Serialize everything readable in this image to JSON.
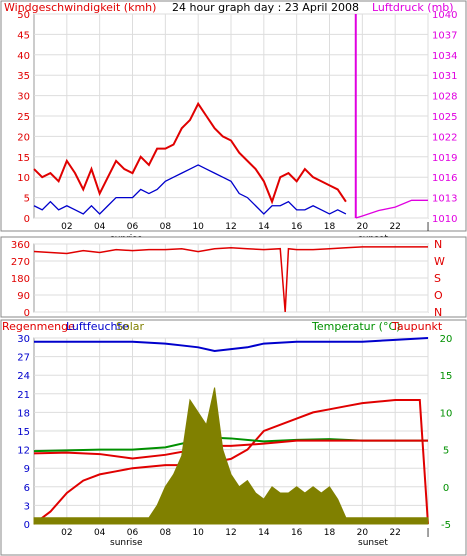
{
  "chart_data": [
    {
      "type": "line",
      "title": "24 hour graph day : 23 April 2008",
      "left_label": "Windgeschwindigkeit (kmh)",
      "right_label": "Luftdruck (mb)",
      "ylim": [
        0,
        50
      ],
      "yticks": [
        "0",
        "5",
        "10",
        "15",
        "20",
        "25",
        "30",
        "35",
        "40",
        "45",
        "50"
      ],
      "y2lim": [
        1010,
        1040
      ],
      "y2ticks": [
        "1010",
        "1013",
        "1016",
        "1019",
        "1022",
        "1025",
        "1028",
        "1031",
        "1034",
        "1037",
        "1040"
      ],
      "xlim": [
        0,
        24
      ],
      "xticks": [
        "02",
        "04",
        "06",
        "08",
        "10",
        "12",
        "14",
        "16",
        "18",
        "20",
        "22",
        "|"
      ],
      "sunrise_label": "sunrise",
      "sunset_label": "sunset",
      "series": [
        {
          "role": "gust",
          "color": "#e00000",
          "x": [
            0,
            0.5,
            1,
            1.5,
            2,
            2.5,
            3,
            3.5,
            4,
            4.5,
            5,
            5.5,
            6,
            6.5,
            7,
            7.5,
            8,
            8.5,
            9,
            9.5,
            10,
            10.5,
            11,
            11.5,
            12,
            12.5,
            13,
            13.5,
            14,
            14.5,
            15,
            15.5,
            16,
            16.5,
            17,
            17.5,
            18,
            18.5,
            19
          ],
          "y": [
            12,
            10,
            11,
            9,
            14,
            11,
            7,
            12,
            6,
            10,
            14,
            12,
            11,
            15,
            13,
            17,
            17,
            18,
            22,
            24,
            28,
            25,
            22,
            20,
            19,
            16,
            14,
            12,
            9,
            4,
            10,
            11,
            9,
            12,
            10,
            9,
            8,
            7,
            4
          ]
        },
        {
          "role": "mean",
          "color": "#0000cc",
          "x": [
            0,
            0.5,
            1,
            1.5,
            2,
            2.5,
            3,
            3.5,
            4,
            4.5,
            5,
            5.5,
            6,
            6.5,
            7,
            7.5,
            8,
            8.5,
            9,
            9.5,
            10,
            10.5,
            11,
            11.5,
            12,
            12.5,
            13,
            13.5,
            14,
            14.5,
            15,
            15.5,
            16,
            16.5,
            17,
            17.5,
            18,
            18.5,
            19
          ],
          "y": [
            3,
            2,
            4,
            2,
            3,
            2,
            1,
            3,
            1,
            3,
            5,
            5,
            5,
            7,
            6,
            7,
            9,
            10,
            11,
            12,
            13,
            12,
            11,
            10,
            9,
            6,
            5,
            3,
            1,
            3,
            3,
            4,
            2,
            2,
            3,
            2,
            1,
            2,
            1
          ]
        },
        {
          "role": "pressure",
          "color": "#e000e0",
          "x": [
            19.6,
            20,
            21,
            22,
            23,
            24
          ],
          "y": [
            1010.0,
            1010.3,
            1011.1,
            1011.6,
            1012.6,
            1012.6
          ]
        }
      ]
    },
    {
      "type": "line",
      "title": "",
      "yticks": [
        "360",
        "270",
        "180",
        "90",
        "0"
      ],
      "ylim": [
        0,
        360
      ],
      "compass": [
        "N",
        "W",
        "S",
        "O",
        "N"
      ],
      "xlim": [
        0,
        24
      ],
      "series": [
        {
          "role": "direction",
          "color": "#e00000",
          "x": [
            0,
            1,
            2,
            3,
            4,
            5,
            6,
            7,
            8,
            9,
            10,
            11,
            12,
            13,
            14,
            15,
            15.3,
            15.5,
            16,
            17,
            18,
            19,
            20,
            21,
            22,
            23,
            24
          ],
          "y": [
            320,
            315,
            310,
            325,
            315,
            330,
            325,
            330,
            330,
            335,
            320,
            335,
            340,
            335,
            330,
            335,
            0,
            335,
            330,
            330,
            335,
            340,
            345,
            345,
            345,
            345,
            345
          ]
        }
      ]
    },
    {
      "type": "line",
      "left_label": "Regenmenge",
      "label_humidity": "Luftfeuchte",
      "label_solar": "Solar",
      "right_label": "Temperatur (°C)",
      "right_label2": "Taupunkt",
      "yticks": [
        "0",
        "3",
        "6",
        "9",
        "12",
        "15",
        "18",
        "21",
        "24",
        "27",
        "30"
      ],
      "yticks_humidity": [
        "0",
        "10",
        "20",
        "30",
        "40",
        "50",
        "60",
        "70",
        "80",
        "90",
        "100"
      ],
      "y2ticks": [
        "-5",
        "-2.5",
        "0",
        "2.5",
        "5",
        "7.5",
        "10",
        "12.5",
        "15",
        "17.5",
        "20"
      ],
      "y2lim": [
        -5,
        20
      ],
      "xlim": [
        0,
        24
      ],
      "series": [
        {
          "role": "humidity",
          "color": "#0000cc",
          "x": [
            0,
            2,
            4,
            6,
            8,
            9,
            10,
            11,
            12,
            13,
            14,
            16,
            18,
            20,
            22,
            24
          ],
          "y": [
            98,
            98,
            98,
            98,
            97,
            96,
            95,
            93,
            94,
            95,
            97,
            98,
            98,
            98,
            99,
            100
          ]
        },
        {
          "role": "rain",
          "color": "#e00000",
          "x": [
            0,
            1,
            2,
            3,
            4,
            5,
            6,
            8,
            10,
            11,
            12,
            13,
            14,
            16,
            17,
            18,
            19,
            20,
            22,
            23.5,
            24
          ],
          "y": [
            0,
            2,
            5,
            7,
            8,
            8.5,
            9,
            9.5,
            9.5,
            10,
            10.5,
            12,
            15,
            17,
            18,
            18.5,
            19,
            19.5,
            20,
            20,
            0
          ]
        },
        {
          "role": "temperature",
          "color": "#009000",
          "x": [
            0,
            2,
            4,
            6,
            8,
            10,
            11,
            12,
            14,
            16,
            18,
            20,
            22,
            24
          ],
          "y": [
            4.8,
            4.9,
            5.0,
            5.0,
            5.3,
            6.3,
            6.6,
            6.5,
            6.1,
            6.3,
            6.4,
            6.2,
            6.2,
            6.2
          ]
        },
        {
          "role": "dewpoint",
          "color": "#e00000",
          "x": [
            0,
            2,
            4,
            6,
            8,
            10,
            11,
            12,
            14,
            16,
            18,
            20,
            22,
            24
          ],
          "y": [
            4.5,
            4.6,
            4.4,
            3.8,
            4.3,
            5.1,
            5.5,
            5.5,
            5.8,
            6.2,
            6.2,
            6.2,
            6.2,
            6.2
          ]
        },
        {
          "role": "solar",
          "color": "#808000",
          "x": [
            0,
            1,
            2,
            3,
            4,
            5,
            6,
            7,
            7.5,
            8,
            8.5,
            9,
            9.5,
            10,
            10.5,
            11,
            11.5,
            12,
            12.5,
            13,
            13.5,
            14,
            14.5,
            15,
            15.5,
            16,
            16.5,
            17,
            17.5,
            18,
            18.5,
            19,
            24
          ],
          "y": [
            1,
            1,
            1,
            1,
            1,
            1,
            1,
            1,
            3,
            6,
            8,
            11,
            20,
            18,
            16,
            22,
            12,
            8,
            6,
            7,
            5,
            4,
            6,
            5,
            5,
            6,
            5,
            6,
            5,
            6,
            4,
            1,
            1
          ]
        }
      ]
    }
  ]
}
